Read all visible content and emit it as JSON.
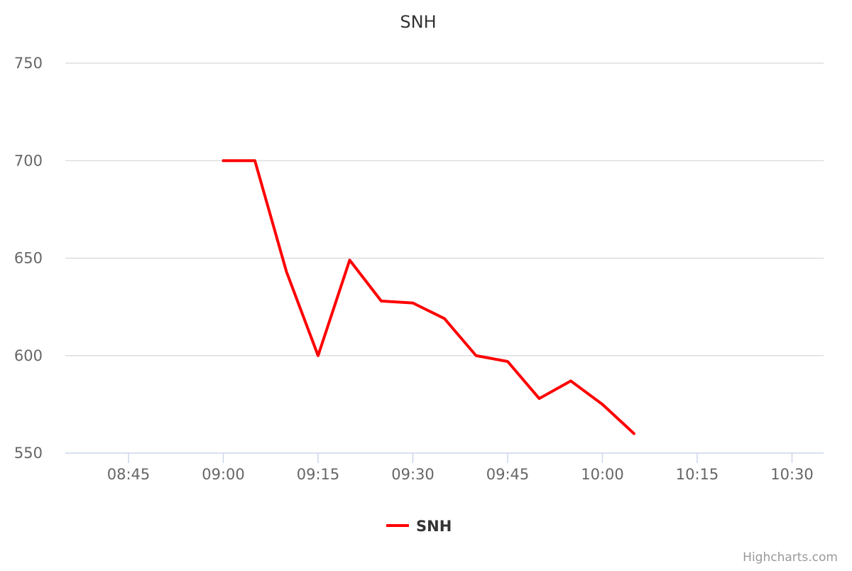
{
  "chart_data": {
    "type": "line",
    "title": "SNH",
    "xlabel": "",
    "ylabel": "",
    "ylim": [
      550,
      750
    ],
    "xlim": [
      "08:35",
      "10:35"
    ],
    "y_ticks": [
      550,
      600,
      650,
      700,
      750
    ],
    "x_ticks": [
      "08:45",
      "09:00",
      "09:15",
      "09:30",
      "09:45",
      "10:00",
      "10:15",
      "10:30"
    ],
    "grid": true,
    "legend_position": "bottom-center",
    "series": [
      {
        "name": "SNH",
        "color": "#ff0000",
        "points": [
          {
            "x": "09:00",
            "y": 700
          },
          {
            "x": "09:05",
            "y": 700
          },
          {
            "x": "09:10",
            "y": 643
          },
          {
            "x": "09:15",
            "y": 600
          },
          {
            "x": "09:20",
            "y": 649
          },
          {
            "x": "09:25",
            "y": 628
          },
          {
            "x": "09:30",
            "y": 627
          },
          {
            "x": "09:35",
            "y": 619
          },
          {
            "x": "09:40",
            "y": 600
          },
          {
            "x": "09:45",
            "y": 597
          },
          {
            "x": "09:50",
            "y": 578
          },
          {
            "x": "09:55",
            "y": 587
          },
          {
            "x": "10:00",
            "y": 575
          },
          {
            "x": "10:05",
            "y": 560
          }
        ]
      }
    ]
  },
  "credits": "Highcharts.com",
  "colors": {
    "grid": "#d8d8d8",
    "axis": "#ccd6eb",
    "series": "#ff0000"
  }
}
